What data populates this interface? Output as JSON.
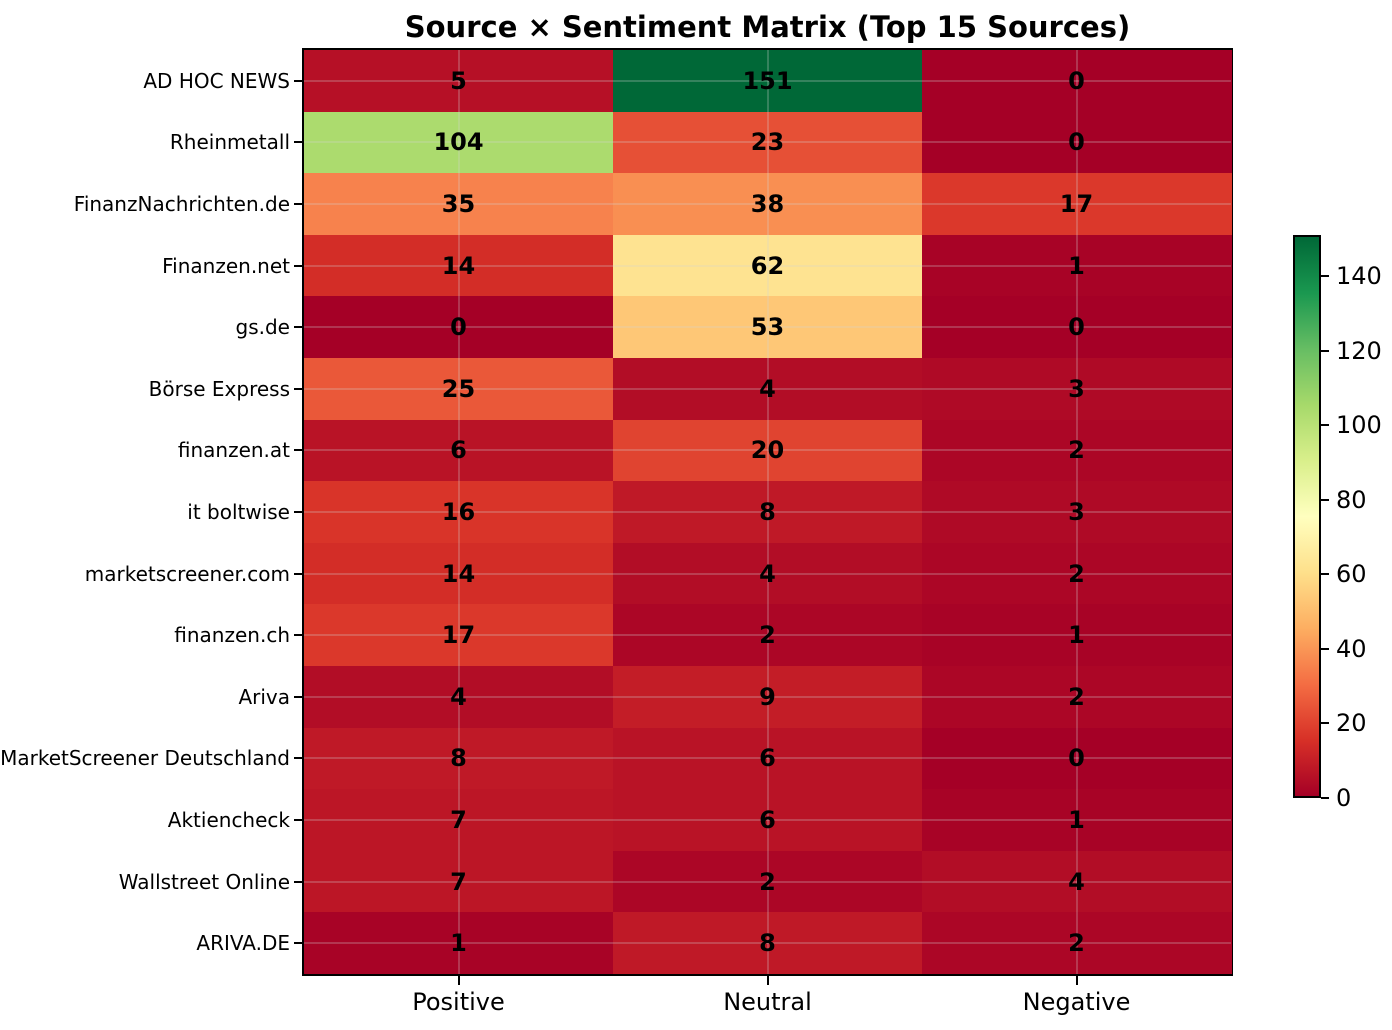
{
  "chart_data": {
    "type": "heatmap",
    "title": "Source × Sentiment Matrix (Top 15 Sources)",
    "columns": [
      "Positive",
      "Neutral",
      "Negative"
    ],
    "rows": [
      "AD HOC NEWS",
      "Rheinmetall",
      "FinanzNachrichten.de",
      "Finanzen.net",
      "gs.de",
      "Börse Express",
      "finanzen.at",
      "it boltwise",
      "marketscreener.com",
      "finanzen.ch",
      "Ariva",
      "MarketScreener Deutschland",
      "Aktiencheck",
      "Wallstreet Online",
      "ARIVA.DE"
    ],
    "values": [
      [
        5,
        151,
        0
      ],
      [
        104,
        23,
        0
      ],
      [
        35,
        38,
        17
      ],
      [
        14,
        62,
        1
      ],
      [
        0,
        53,
        0
      ],
      [
        25,
        4,
        3
      ],
      [
        6,
        20,
        2
      ],
      [
        16,
        8,
        3
      ],
      [
        14,
        4,
        2
      ],
      [
        17,
        2,
        1
      ],
      [
        4,
        9,
        2
      ],
      [
        8,
        6,
        0
      ],
      [
        7,
        6,
        1
      ],
      [
        7,
        2,
        4
      ],
      [
        1,
        8,
        2
      ]
    ],
    "vmin": 0,
    "vmax": 151,
    "colorbar_ticks": [
      0,
      20,
      40,
      60,
      80,
      100,
      120,
      140
    ],
    "colormap": {
      "name": "RdYlGn",
      "stops": [
        "#a50026",
        "#d73027",
        "#f46d43",
        "#fdae61",
        "#fee08b",
        "#ffffbf",
        "#d9ef8b",
        "#a6d96a",
        "#66bd63",
        "#1a9850",
        "#006837"
      ]
    },
    "layout_hints": {
      "grid": true,
      "legend_position": "right-colorbar",
      "annotation_color": "#000000"
    }
  }
}
